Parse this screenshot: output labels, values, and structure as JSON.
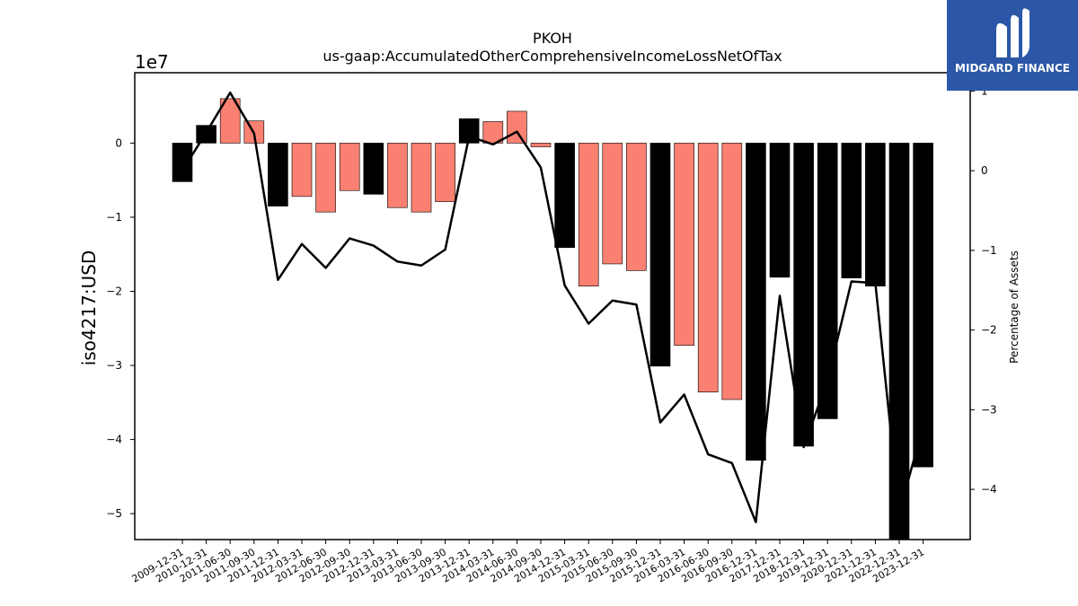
{
  "logo": {
    "text": "MIDGARD FINANCE"
  },
  "chart_data": {
    "type": "bar",
    "title": "PKOH",
    "subtitle": "us-gaap:AccumulatedOtherComprehensiveIncomeLossNetOfTax",
    "ylabel": "iso4217:USD",
    "y_offset_label": "1e7",
    "y2label": "Percentage of Assets",
    "ylim": [
      -5.35,
      0.95
    ],
    "y2lim": [
      -4.63,
      1.23
    ],
    "yticks": [
      "0",
      "−1",
      "−2",
      "−3",
      "−4",
      "−5"
    ],
    "y2ticks": [
      "1",
      "0",
      "−1",
      "−2",
      "−3",
      "−4"
    ],
    "categories": [
      "2009-12-31",
      "2010-12-31",
      "2011-06-30",
      "2011-09-30",
      "2011-12-31",
      "2012-03-31",
      "2012-06-30",
      "2012-09-30",
      "2012-12-31",
      "2013-03-31",
      "2013-06-30",
      "2013-09-30",
      "2013-12-31",
      "2014-03-31",
      "2014-06-30",
      "2014-09-30",
      "2014-12-31",
      "2015-03-31",
      "2015-06-30",
      "2015-09-30",
      "2015-12-31",
      "2016-03-31",
      "2016-06-30",
      "2016-09-30",
      "2016-12-31",
      "2017-12-31",
      "2018-12-31",
      "2019-12-31",
      "2020-12-31",
      "2021-12-31",
      "2022-12-31",
      "2023-12-31"
    ],
    "series": [
      {
        "values": [
          -0.52,
          0.24,
          0.6,
          0.3,
          -0.85,
          -0.72,
          -0.93,
          -0.64,
          -0.69,
          -0.87,
          -0.93,
          -0.79,
          0.33,
          0.29,
          0.43,
          -0.05,
          -1.41,
          -1.93,
          -1.63,
          -1.72,
          -3.01,
          -2.73,
          -3.36,
          -3.46,
          -4.28,
          -1.81,
          -4.09,
          -3.72,
          -1.82,
          -1.93,
          -5.35,
          -4.37
        ],
        "colors": [
          "#000000",
          "#000000",
          "#fa8072",
          "#fa8072",
          "#000000",
          "#fa8072",
          "#fa8072",
          "#fa8072",
          "#000000",
          "#fa8072",
          "#fa8072",
          "#fa8072",
          "#000000",
          "#fa8072",
          "#fa8072",
          "#fa8072",
          "#000000",
          "#fa8072",
          "#fa8072",
          "#fa8072",
          "#000000",
          "#fa8072",
          "#fa8072",
          "#fa8072",
          "#000000",
          "#000000",
          "#000000",
          "#000000",
          "#000000",
          "#000000",
          "#000000",
          "#000000"
        ]
      },
      {
        "axis": "right",
        "type": "line",
        "color": "#000000",
        "values": [
          0.0,
          0.48,
          0.98,
          0.47,
          -1.37,
          -0.92,
          -1.22,
          -0.85,
          -0.94,
          -1.14,
          -1.19,
          -0.99,
          0.43,
          0.33,
          0.49,
          0.04,
          -1.44,
          -1.92,
          -1.63,
          -1.68,
          -3.16,
          -2.81,
          -3.56,
          -3.67,
          -4.41,
          -1.57,
          -3.47,
          -2.63,
          -1.39,
          -1.41,
          -4.29,
          -3.21
        ]
      }
    ],
    "grid": false,
    "legend": "none"
  }
}
